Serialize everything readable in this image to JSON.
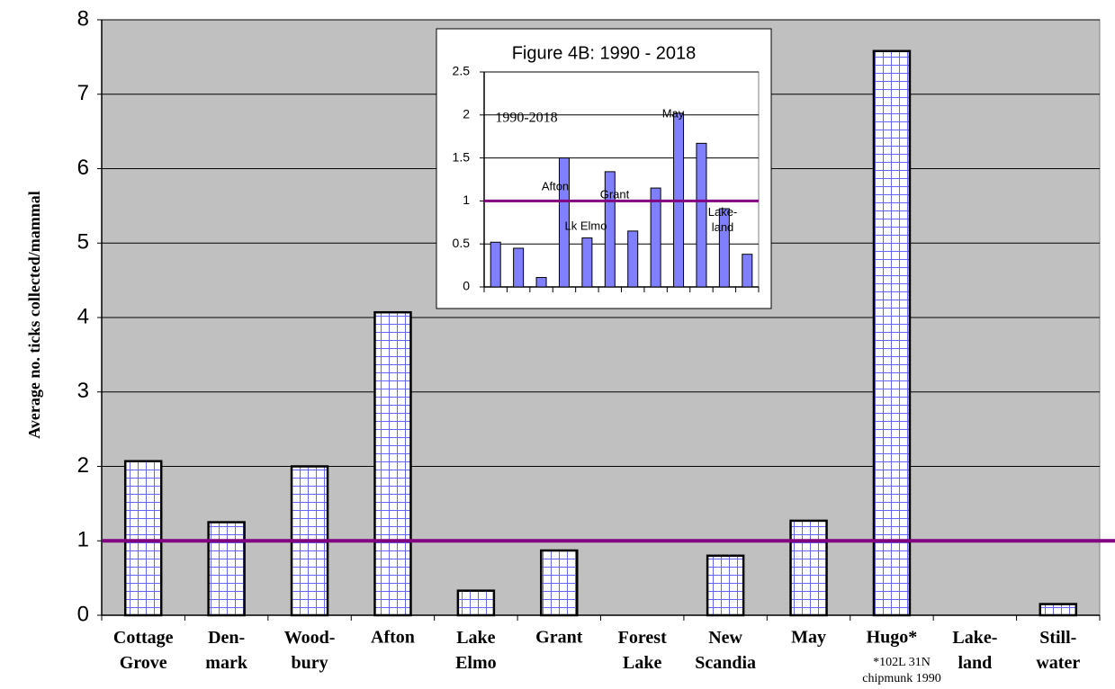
{
  "chart_data": [
    {
      "type": "bar",
      "ylabel": "Average no. ticks collected/mammal",
      "categories": [
        "Cottage\nGrove",
        "Den-\nmark",
        "Wood-\nbury",
        "Afton",
        "Lake\nElmo",
        "Grant",
        "Forest\nLake",
        "New\nScandia",
        "May",
        "Hugo*",
        "Lake-\nland",
        "Still-\nwater"
      ],
      "values": [
        2.07,
        1.25,
        2.0,
        4.07,
        0.33,
        0.87,
        0,
        0.8,
        1.27,
        7.58,
        0,
        0.15
      ],
      "ylim": [
        0,
        8
      ],
      "yticks": [
        0,
        1,
        2,
        3,
        4,
        5,
        6,
        7,
        8
      ],
      "grid": true,
      "background": "#c0c0c0",
      "color": "#6666ff",
      "reference_line": 1,
      "reference_color": "#800080",
      "annotations": [
        "*102L 31N\nchipmunk 1990"
      ]
    },
    {
      "type": "bar",
      "title": "Figure 4B: 1990 - 2018",
      "categories": [
        null,
        null,
        null,
        null,
        null,
        null,
        null,
        null,
        null,
        null,
        null,
        null
      ],
      "values": [
        0.52,
        0.45,
        0.11,
        1.5,
        0.57,
        1.34,
        0.65,
        1.15,
        2.02,
        1.67,
        0.91,
        0.38
      ],
      "ylim": [
        0,
        2.5
      ],
      "yticks": [
        0,
        0.5,
        1,
        1.5,
        2,
        2.5
      ],
      "grid": true,
      "background": "#ffffff",
      "color": "#8080ff",
      "reference_line": 1,
      "reference_color": "#800080",
      "annotations": [
        "1990-2018",
        "Afton",
        "Grant",
        "Lk Elmo",
        "May",
        "Lake-\nland"
      ]
    }
  ]
}
